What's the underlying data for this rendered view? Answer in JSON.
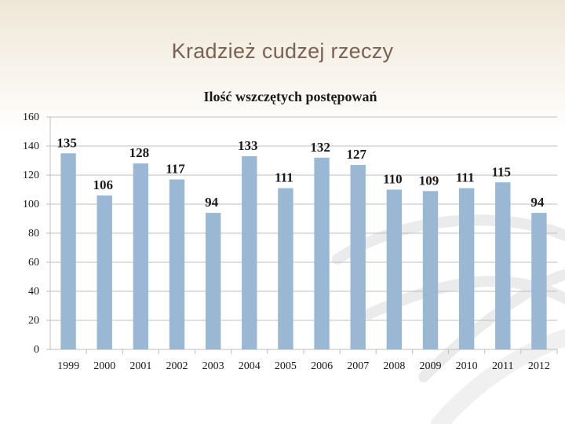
{
  "slide": {
    "title": "Kradzież cudzej rzeczy"
  },
  "colors": {
    "bar": "#9ab7d4",
    "grid": "#bfbfbf",
    "title": "#7a6352",
    "text": "#1a1a1a"
  },
  "chart_data": {
    "type": "bar",
    "title": "Ilość wszczętych postępowań",
    "categories": [
      "1999",
      "2000",
      "2001",
      "2002",
      "2003",
      "2004",
      "2005",
      "2006",
      "2007",
      "2008",
      "2009",
      "2010",
      "2011",
      "2012"
    ],
    "values": [
      135,
      106,
      128,
      117,
      94,
      133,
      111,
      132,
      127,
      110,
      109,
      111,
      115,
      94
    ],
    "ylim": [
      0,
      160
    ],
    "yticks": [
      0,
      20,
      40,
      60,
      80,
      100,
      120,
      140,
      160
    ],
    "grid": true,
    "legend": "none",
    "data_labels": true
  }
}
